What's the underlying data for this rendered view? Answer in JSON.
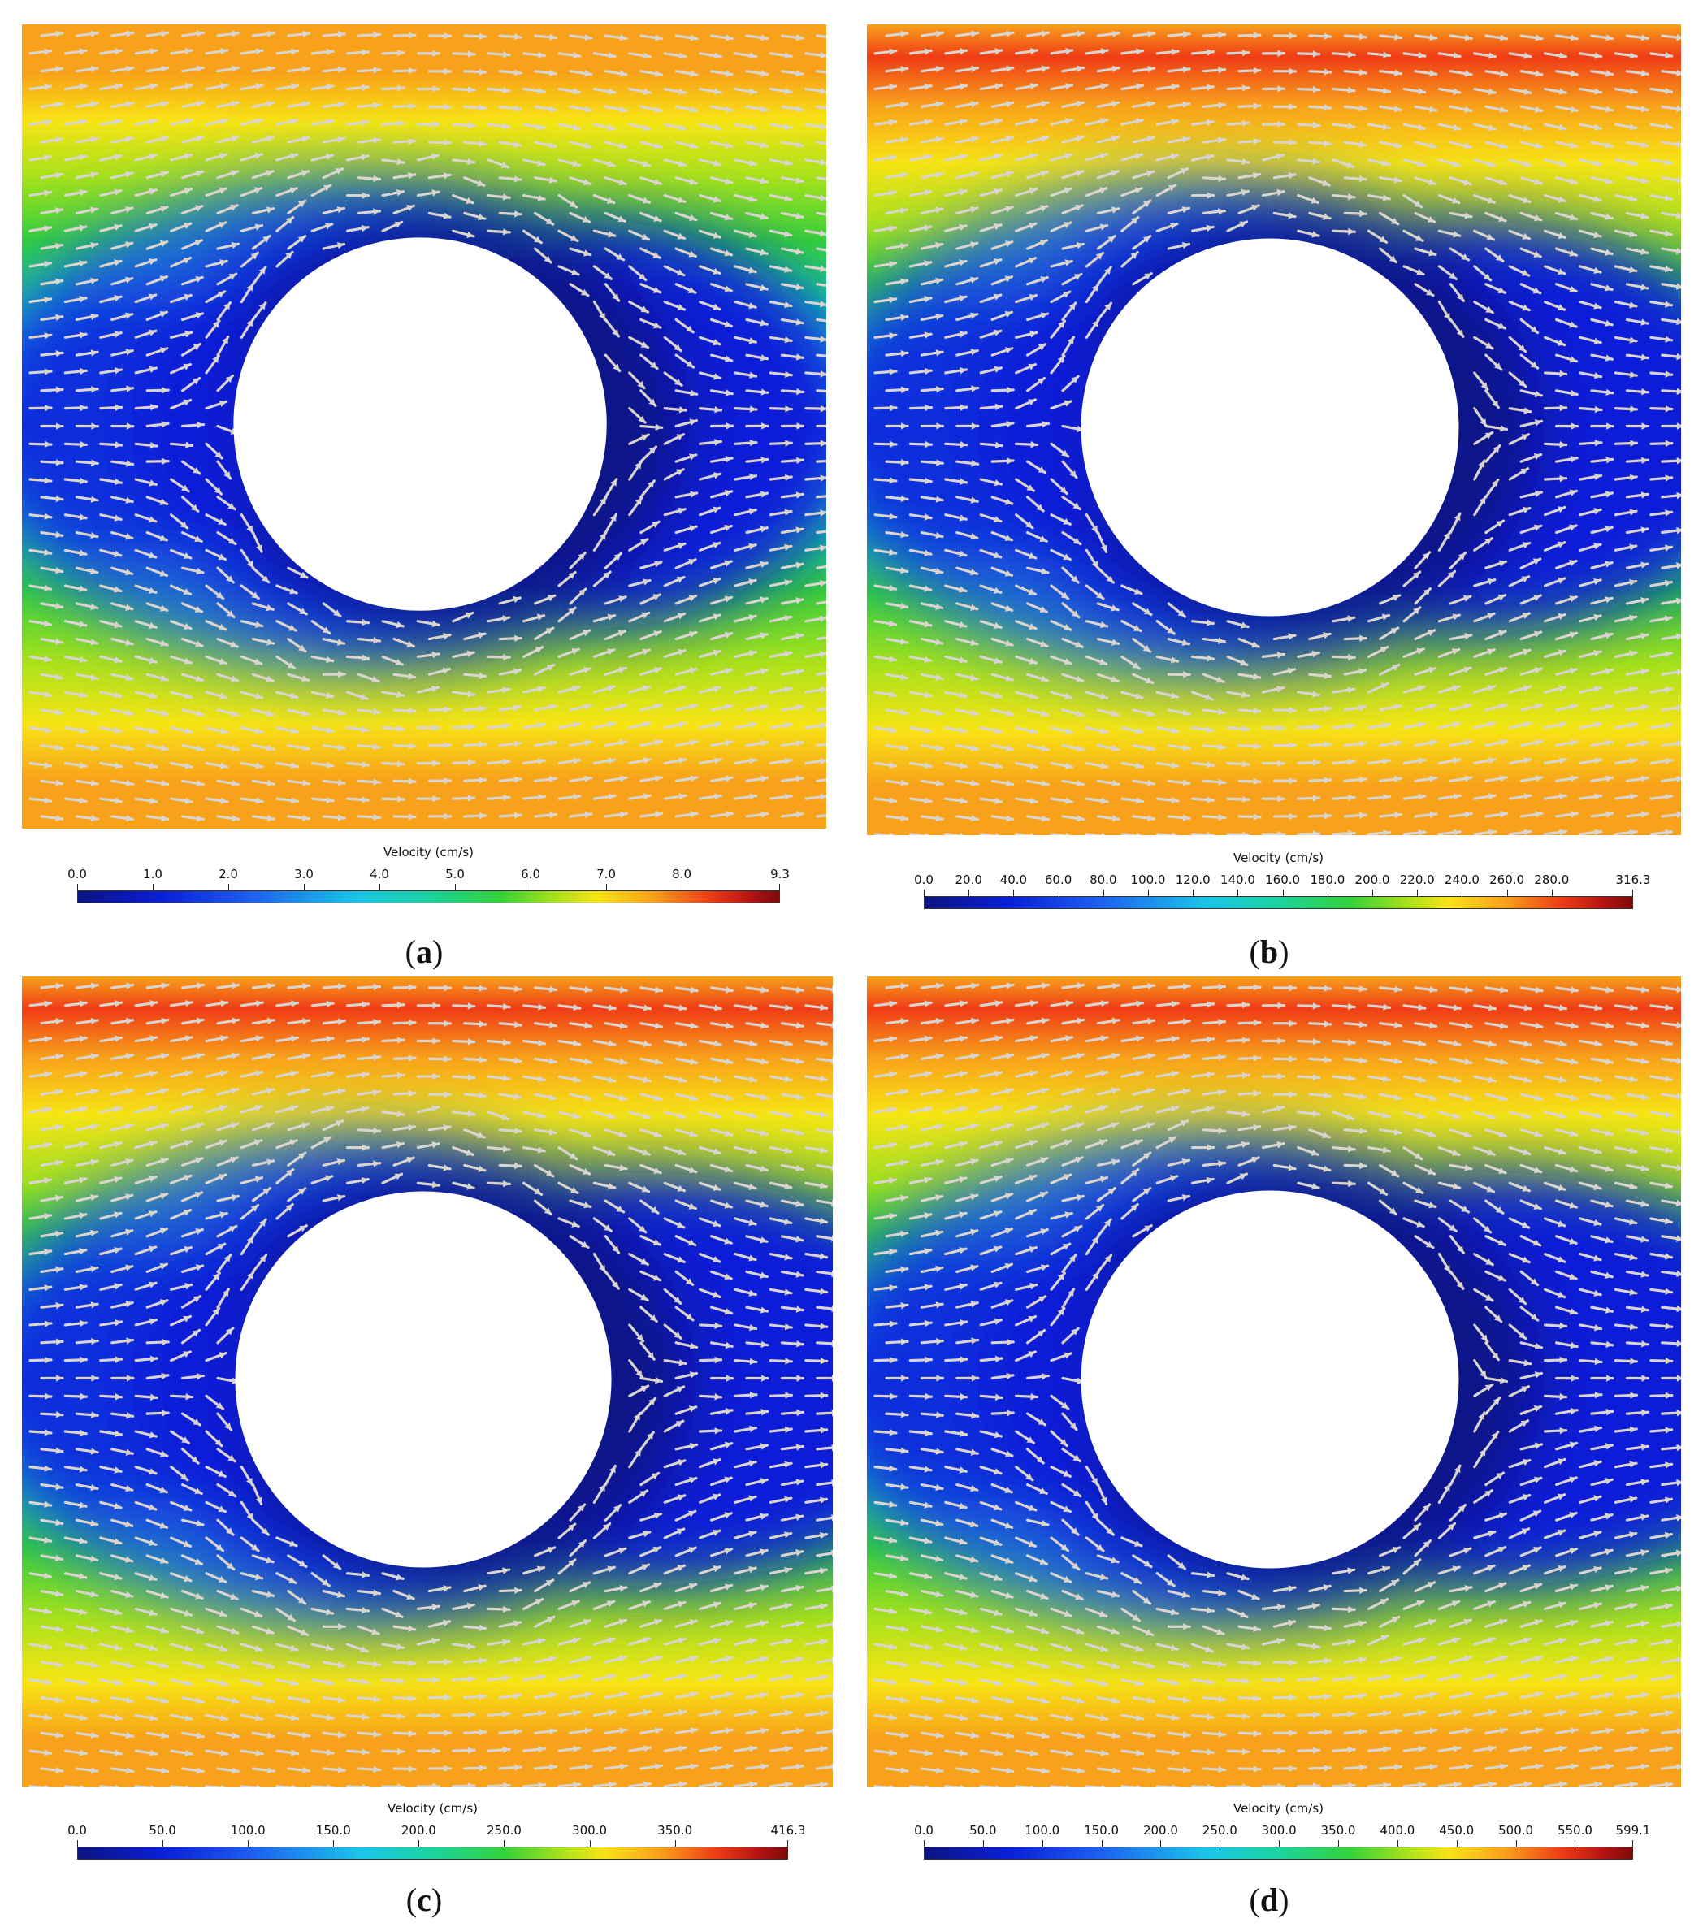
{
  "panels": [
    {
      "id": "a",
      "caption_letter": "a",
      "colorbar": {
        "title": "Velocity (cm/s)",
        "max": 9.3,
        "ticks": [
          "0.0",
          "1.0",
          "2.0",
          "3.0",
          "4.0",
          "5.0",
          "6.0",
          "7.0",
          "8.0",
          "9.3"
        ],
        "tick_values": [
          0,
          1,
          2,
          3,
          4,
          5,
          6,
          7,
          8,
          9.3
        ]
      },
      "top_peak": "orange",
      "wake": "weak"
    },
    {
      "id": "b",
      "caption_letter": "b",
      "colorbar": {
        "title": "Velocity (cm/s)",
        "max": 316.3,
        "ticks": [
          "0.0",
          "20.0",
          "40.0",
          "60.0",
          "80.0",
          "100.0",
          "120.0",
          "140.0",
          "160.0",
          "180.0",
          "200.0",
          "220.0",
          "240.0",
          "260.0",
          "280.0",
          "316.3"
        ],
        "tick_values": [
          0,
          20,
          40,
          60,
          80,
          100,
          120,
          140,
          160,
          180,
          200,
          220,
          240,
          260,
          280,
          316.3
        ]
      },
      "top_peak": "red",
      "wake": "medium"
    },
    {
      "id": "c",
      "caption_letter": "c",
      "colorbar": {
        "title": "Velocity (cm/s)",
        "max": 416.3,
        "ticks": [
          "0.0",
          "50.0",
          "100.0",
          "150.0",
          "200.0",
          "250.0",
          "300.0",
          "350.0",
          "416.3"
        ],
        "tick_values": [
          0,
          50,
          100,
          150,
          200,
          250,
          300,
          350,
          416.3
        ]
      },
      "top_peak": "red",
      "wake": "strong"
    },
    {
      "id": "d",
      "caption_letter": "d",
      "colorbar": {
        "title": "Velocity (cm/s)",
        "max": 599.1,
        "ticks": [
          "0.0",
          "50.0",
          "100.0",
          "150.0",
          "200.0",
          "250.0",
          "300.0",
          "350.0",
          "400.0",
          "450.0",
          "500.0",
          "550.0",
          "599.1"
        ],
        "tick_values": [
          0,
          50,
          100,
          150,
          200,
          250,
          300,
          350,
          400,
          450,
          500,
          550,
          599.1
        ]
      },
      "top_peak": "red",
      "wake": "strong"
    }
  ],
  "colors": {
    "background": "#ffffff",
    "arrow": "#d9d4ce",
    "colormap": [
      "#0b1480",
      "#0a1fd8",
      "#1d5cf2",
      "#19c6e6",
      "#1ad3a0",
      "#33d13a",
      "#a6e11b",
      "#f7e414",
      "#f8a11a",
      "#ef3c16",
      "#b51313",
      "#7c0b0b"
    ]
  }
}
